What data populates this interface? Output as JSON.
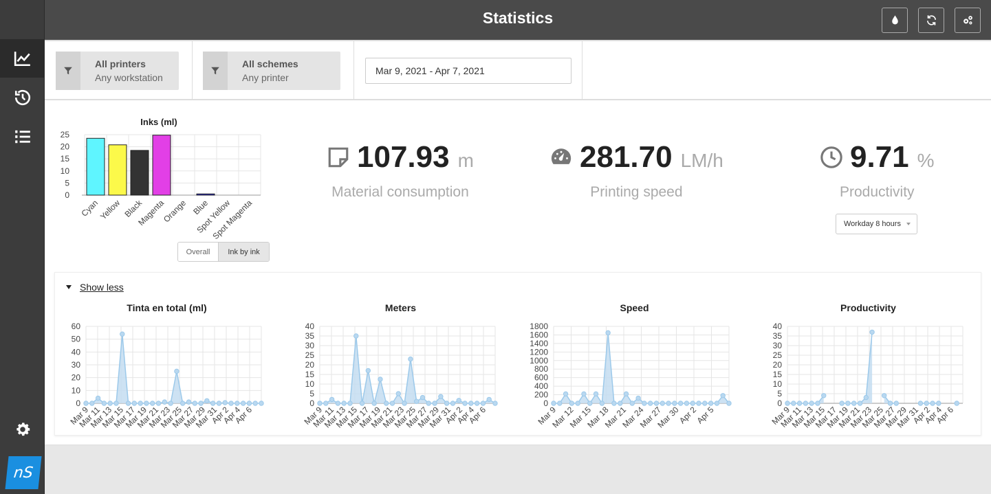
{
  "header": {
    "title": "Statistics",
    "buttons": [
      {
        "icon": "ink-drop-icon"
      },
      {
        "icon": "refresh-icon"
      },
      {
        "icon": "settings-gears-icon"
      }
    ]
  },
  "sidebar": {
    "items": [
      {
        "icon": "chart-line-icon",
        "active": true
      },
      {
        "icon": "history-icon",
        "active": false
      },
      {
        "icon": "list-icon",
        "active": false
      },
      {
        "icon": "gear-icon",
        "active": false
      }
    ],
    "logo": "nS"
  },
  "filters": {
    "printers": {
      "title": "All printers",
      "subtitle": "Any workstation"
    },
    "schemes": {
      "title": "All schemes",
      "subtitle": "Any printer"
    },
    "date_range": "Mar 9, 2021 - Apr 7, 2021"
  },
  "stats": {
    "material": {
      "value": "107.93",
      "unit": "m",
      "label": "Material consumption"
    },
    "speed": {
      "value": "281.70",
      "unit": "LM/h",
      "label": "Printing speed"
    },
    "productivity": {
      "value": "9.71",
      "unit": "%",
      "label": "Productivity"
    },
    "workday_select": "Workday 8 hours"
  },
  "ink_toggle": {
    "overall": "Overall",
    "ink_by_ink": "Ink by ink"
  },
  "show_less": "Show less",
  "colors": {
    "cyan": "#5ff5ff",
    "yellow": "#fcf94a",
    "black": "#333333",
    "magenta": "#e23fe6",
    "blue": "#2b2bd6",
    "line": "#9cc9ea",
    "fill": "#c4ddf1"
  },
  "chart_data": [
    {
      "type": "bar",
      "title": "Inks (ml)",
      "categories": [
        "Cyan",
        "Yellow",
        "Black",
        "Magenta",
        "Orange",
        "Blue",
        "Spot Yellow",
        "Spot Magenta"
      ],
      "values": [
        23.5,
        20.8,
        18.5,
        24.8,
        0,
        0.5,
        0,
        0
      ],
      "ylim": [
        0,
        25
      ],
      "yticks": [
        0,
        5,
        10,
        15,
        20,
        25
      ]
    },
    {
      "type": "area",
      "title": "Tinta en total (ml)",
      "xticks": [
        "Mar 9",
        "Mar 11",
        "Mar 13",
        "Mar 15",
        "Mar 17",
        "Mar 19",
        "Mar 21",
        "Mar 23",
        "Mar 25",
        "Mar 27",
        "Mar 29",
        "Mar 31",
        "Apr 2",
        "Apr 4",
        "Apr 6"
      ],
      "values": [
        0,
        0,
        4,
        0,
        0,
        0,
        54,
        0,
        0,
        0,
        0,
        0,
        0,
        1,
        0,
        25,
        0,
        1,
        0,
        0,
        2,
        0,
        0,
        0.5,
        0,
        0,
        0,
        0,
        0,
        0
      ],
      "ylim": [
        0,
        60
      ],
      "yticks": [
        0,
        10,
        20,
        30,
        40,
        50,
        60
      ]
    },
    {
      "type": "area",
      "title": "Meters",
      "xticks": [
        "Mar 9",
        "Mar 11",
        "Mar 13",
        "Mar 15",
        "Mar 17",
        "Mar 19",
        "Mar 21",
        "Mar 23",
        "Mar 25",
        "Mar 27",
        "Mar 29",
        "Mar 31",
        "Apr 2",
        "Apr 4",
        "Apr 6"
      ],
      "values": [
        0,
        0,
        2,
        0,
        0,
        0,
        35,
        0,
        17,
        0,
        12.5,
        0,
        0,
        5,
        0,
        23,
        1,
        3,
        0,
        0,
        3.5,
        0,
        0,
        1.5,
        0,
        0,
        0,
        0,
        2,
        0
      ],
      "ylim": [
        0,
        40
      ],
      "yticks": [
        0,
        5,
        10,
        15,
        20,
        25,
        30,
        35,
        40
      ]
    },
    {
      "type": "area",
      "title": "Speed",
      "xticks": [
        "Mar 9",
        "Mar 12",
        "Mar 15",
        "Mar 18",
        "Mar 21",
        "Mar 24",
        "Mar 27",
        "Mar 30",
        "Apr 2",
        "Apr 5"
      ],
      "values": [
        0,
        0,
        220,
        0,
        0,
        220,
        0,
        220,
        0,
        1650,
        0,
        0,
        220,
        0,
        120,
        0,
        0,
        0,
        0,
        0,
        0,
        0,
        0,
        0,
        0,
        0,
        0,
        0,
        180,
        0
      ],
      "ylim": [
        0,
        1800
      ],
      "yticks": [
        0,
        200,
        400,
        600,
        800,
        1000,
        1200,
        1400,
        1600,
        1800
      ]
    },
    {
      "type": "area",
      "title": "Productivity",
      "xticks": [
        "Mar 9",
        "Mar 11",
        "Mar 13",
        "Mar 15",
        "Mar 17",
        "Mar 19",
        "Mar 21",
        "Mar 23",
        "Mar 25",
        "Mar 27",
        "Mar 29",
        "Mar 31",
        "Apr 2",
        "Apr 4",
        "Apr 6"
      ],
      "values": [
        0,
        0,
        0,
        0,
        0,
        0,
        4,
        null,
        null,
        0,
        0,
        0,
        0,
        3,
        37,
        null,
        4,
        0,
        0,
        null,
        null,
        null,
        0,
        0,
        0,
        0,
        null,
        null,
        0,
        null
      ],
      "ylim": [
        0,
        40
      ],
      "yticks": [
        0,
        5,
        10,
        15,
        20,
        25,
        30,
        35,
        40
      ]
    }
  ]
}
